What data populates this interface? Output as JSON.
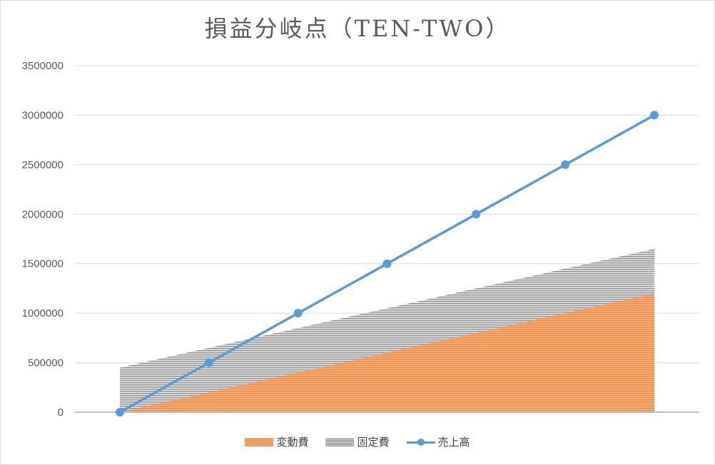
{
  "chart_data": {
    "type": "area",
    "title": "損益分岐点（TEN-TWO）",
    "xlabel": "",
    "ylabel": "",
    "ylim": [
      0,
      3500000
    ],
    "yticks": [
      0,
      500000,
      1000000,
      1500000,
      2000000,
      2500000,
      3000000,
      3500000
    ],
    "ytick_labels": [
      "0",
      "500000",
      "1000000",
      "1500000",
      "2000000",
      "2500000",
      "3000000",
      "3500000"
    ],
    "x": [
      0,
      1,
      2,
      3,
      4,
      5,
      6
    ],
    "grid": true,
    "legend_position": "bottom",
    "series": [
      {
        "name": "変動費",
        "kind": "area",
        "color": "#ed7d31",
        "values": [
          0,
          200000,
          400000,
          600000,
          800000,
          1000000,
          1200000
        ]
      },
      {
        "name": "固定費",
        "kind": "area",
        "color": "#a5a5a5",
        "values": [
          450000,
          650000,
          850000,
          1050000,
          1250000,
          1450000,
          1650000
        ]
      },
      {
        "name": "売上高",
        "kind": "line",
        "color": "#5b9bd5",
        "values": [
          0,
          500000,
          1000000,
          1500000,
          2000000,
          2500000,
          3000000
        ]
      }
    ]
  }
}
